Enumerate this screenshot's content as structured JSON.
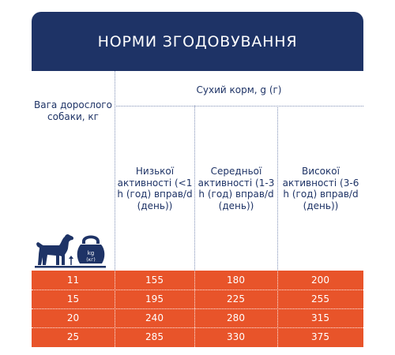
{
  "title": "НОРМИ ЗГОДОВУВАННЯ",
  "weight_header": "Вага дорослого собаки, кг",
  "dry_food_header": "Сухий корм, g (г)",
  "activity_headers": [
    "Низької активності (<1 h (год) вправ/d (день))",
    "Середньої активності (1-3 h (год) вправ/d (день))",
    "Високої активності (3-6 h (год) вправ/d (день))"
  ],
  "icon": {
    "name": "dog-weight-icon",
    "weight_text": "kg",
    "weight_subtext": "(кг)"
  },
  "rows": [
    {
      "weight": "11",
      "low": "155",
      "medium": "180",
      "high": "200"
    },
    {
      "weight": "15",
      "low": "195",
      "medium": "225",
      "high": "255"
    },
    {
      "weight": "20",
      "low": "240",
      "medium": "280",
      "high": "315"
    },
    {
      "weight": "25",
      "low": "285",
      "medium": "330",
      "high": "375"
    }
  ],
  "colors": {
    "header_bg": "#1e3366",
    "text": "#1e3366",
    "rows_bg": "#e8542a",
    "rows_text": "#ffffff"
  }
}
